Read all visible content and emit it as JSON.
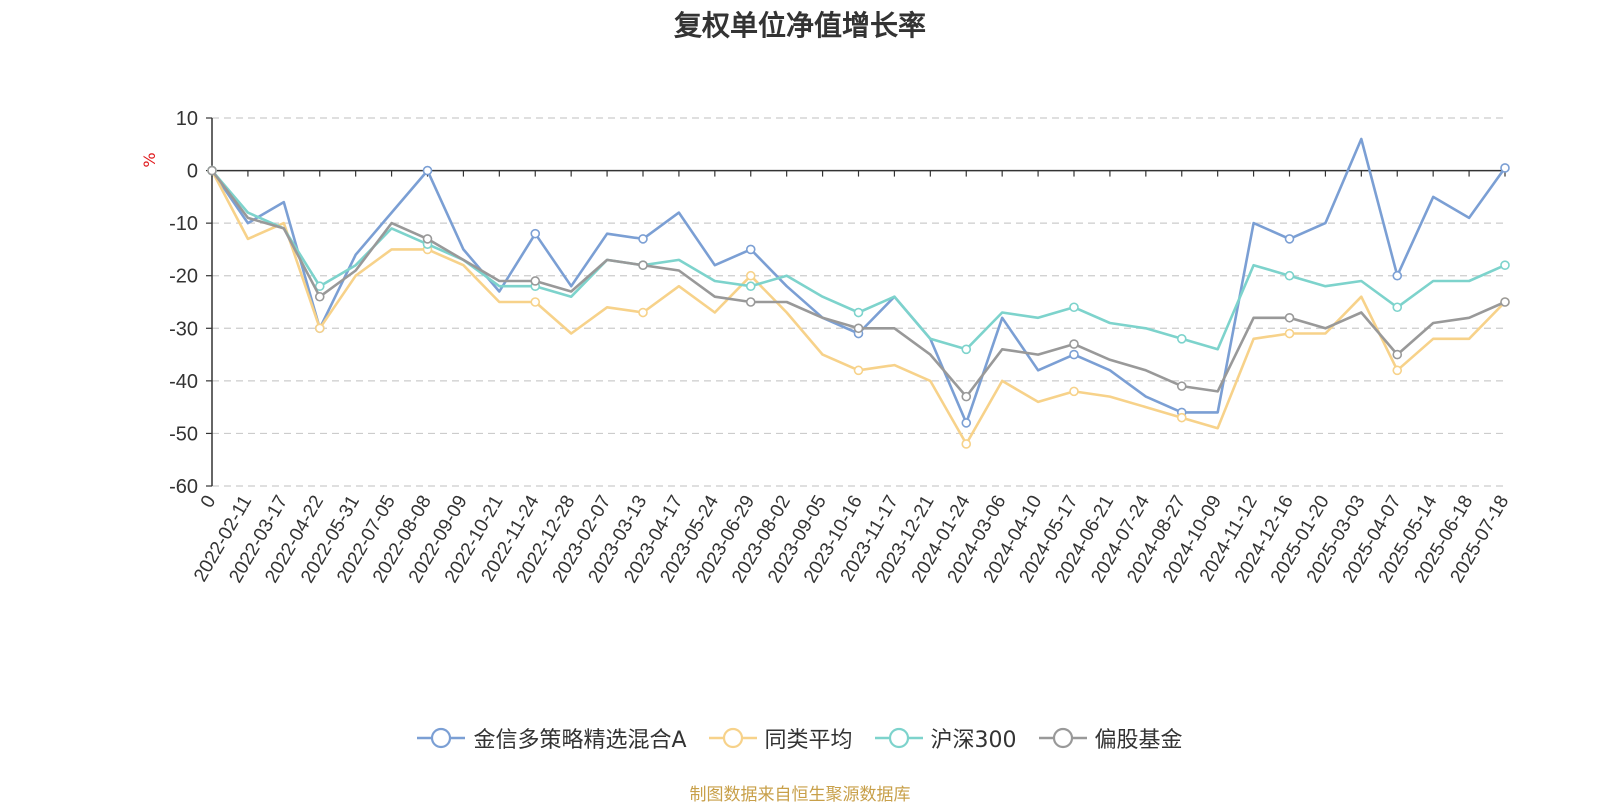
{
  "title": "复权单位净值增长率",
  "source": "制图数据来自恒生聚源数据库",
  "chart_data": {
    "type": "line",
    "title": "复权单位净值增长率",
    "ylabel": "%",
    "ylim": [
      -60,
      10
    ],
    "yticks": [
      10,
      0,
      -10,
      -20,
      -30,
      -40,
      -50,
      -60
    ],
    "xticks": [
      "0",
      "2022-02-11",
      "2022-03-17",
      "2022-04-22",
      "2022-05-31",
      "2022-07-05",
      "2022-08-08",
      "2022-09-09",
      "2022-10-21",
      "2022-11-24",
      "2022-12-28",
      "2023-02-07",
      "2023-03-13",
      "2023-04-17",
      "2023-05-24",
      "2023-06-29",
      "2023-08-02",
      "2023-09-05",
      "2023-10-16",
      "2023-11-17",
      "2023-12-21",
      "2024-01-24",
      "2024-03-06",
      "2024-04-10",
      "2024-05-17",
      "2024-06-21",
      "2024-07-24",
      "2024-08-27",
      "2024-10-09",
      "2024-11-12",
      "2024-12-16",
      "2025-01-20",
      "2025-03-03",
      "2025-04-07",
      "2025-05-14",
      "2025-06-18",
      "2025-07-18"
    ],
    "grid": true,
    "legend_position": "bottom",
    "x_index": [
      0,
      1,
      2,
      3,
      4,
      5,
      6,
      7,
      8,
      9,
      10,
      11,
      12,
      13,
      14,
      15,
      16,
      17,
      18,
      19,
      20,
      21,
      22,
      23,
      24,
      25,
      26,
      27,
      28,
      29,
      30,
      31,
      32,
      33,
      34,
      35,
      36
    ],
    "series": [
      {
        "name": "金信多策略精选混合A",
        "color": "#7b9fd4",
        "values": [
          0,
          -10,
          -6,
          -30,
          -16,
          -8,
          0,
          -15,
          -23,
          -12,
          -22,
          -12,
          -13,
          -8,
          -18,
          -15,
          -22,
          -28,
          -31,
          -24,
          -32,
          -48,
          -28,
          -38,
          -35,
          -38,
          -43,
          -46,
          -46,
          -10,
          -13,
          -10,
          6,
          -20,
          -5,
          -9,
          0.5
        ]
      },
      {
        "name": "同类平均",
        "color": "#f7d28a",
        "values": [
          0,
          -13,
          -10,
          -30,
          -20,
          -15,
          -15,
          -18,
          -25,
          -25,
          -31,
          -26,
          -27,
          -22,
          -27,
          -20,
          -27,
          -35,
          -38,
          -37,
          -40,
          -52,
          -40,
          -44,
          -42,
          -43,
          -45,
          -47,
          -49,
          -32,
          -31,
          -31,
          -24,
          -38,
          -32,
          -32,
          -25
        ]
      },
      {
        "name": "沪深300",
        "color": "#7dd3cc",
        "values": [
          0,
          -8,
          -11,
          -22,
          -18,
          -11,
          -14,
          -17,
          -22,
          -22,
          -24,
          -17,
          -18,
          -17,
          -21,
          -22,
          -20,
          -24,
          -27,
          -24,
          -32,
          -34,
          -27,
          -28,
          -26,
          -29,
          -30,
          -32,
          -34,
          -18,
          -20,
          -22,
          -21,
          -26,
          -21,
          -21,
          -18
        ]
      },
      {
        "name": "偏股基金",
        "color": "#999999",
        "values": [
          0,
          -9,
          -11,
          -24,
          -19,
          -10,
          -13,
          -17,
          -21,
          -21,
          -23,
          -17,
          -18,
          -19,
          -24,
          -25,
          -25,
          -28,
          -30,
          -30,
          -35,
          -43,
          -34,
          -35,
          -33,
          -36,
          -38,
          -41,
          -42,
          -28,
          -28,
          -30,
          -27,
          -35,
          -29,
          -28,
          -25
        ]
      }
    ]
  }
}
